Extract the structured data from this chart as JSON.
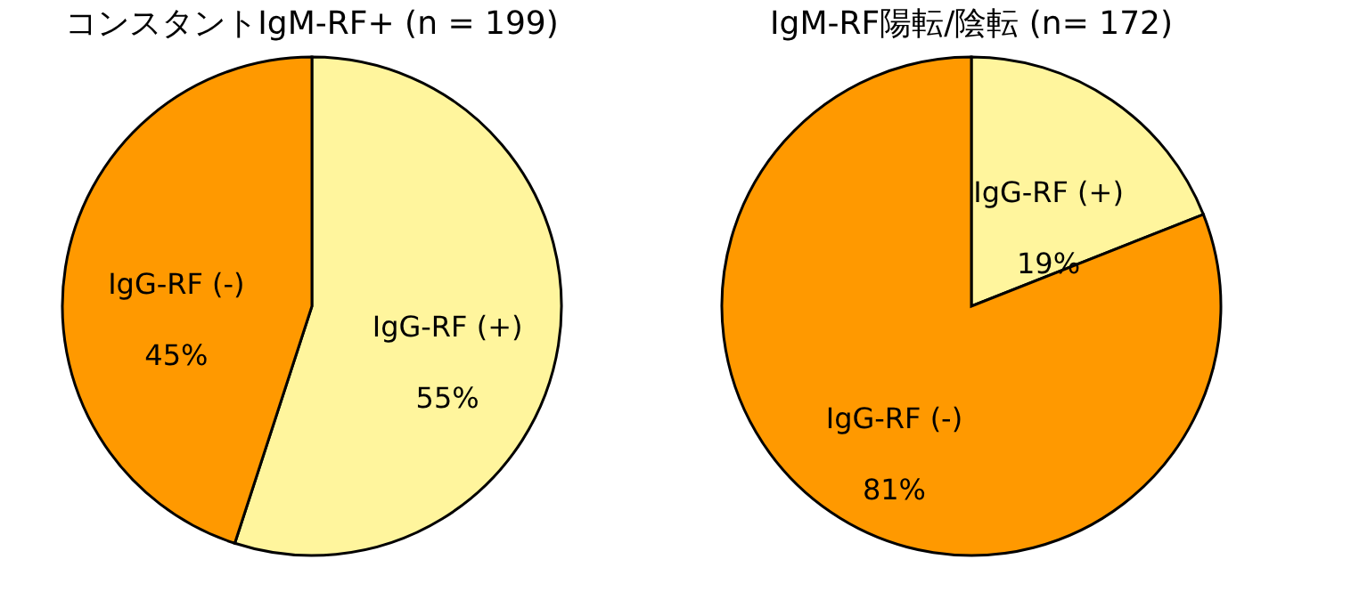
{
  "chart_data": [
    {
      "type": "pie",
      "title": "コンスタントIgM-RF+ (n = 199)",
      "categories": [
        "IgG-RF (+)",
        "IgG-RF (-)"
      ],
      "values": [
        55,
        45
      ],
      "value_labels": [
        "55%",
        "45%"
      ],
      "colors": [
        "#fff59d",
        "#ff9900"
      ],
      "legend": false
    },
    {
      "type": "pie",
      "title": "IgM-RF陽転/陰転 (n= 172)",
      "categories": [
        "IgG-RF (+)",
        "IgG-RF (-)"
      ],
      "values": [
        19,
        81
      ],
      "value_labels": [
        "19%",
        "81%"
      ],
      "colors": [
        "#fff59d",
        "#ff9900"
      ],
      "legend": false
    }
  ]
}
